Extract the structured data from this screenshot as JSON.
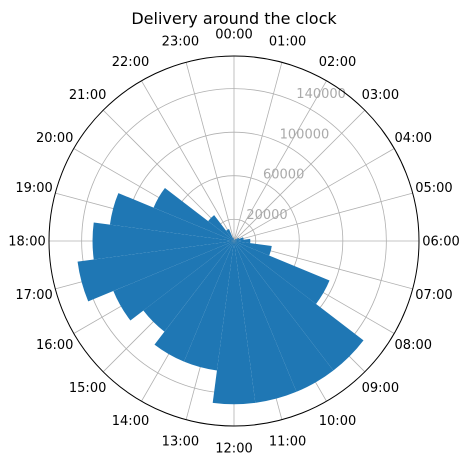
{
  "chart_data": {
    "type": "bar",
    "subtype": "polar",
    "title": "Delivery around the clock",
    "direction": "clockwise",
    "zero_location": "top",
    "categories": [
      "00:00",
      "01:00",
      "02:00",
      "03:00",
      "04:00",
      "05:00",
      "06:00",
      "07:00",
      "08:00",
      "09:00",
      "10:00",
      "11:00",
      "12:00",
      "13:00",
      "14:00",
      "15:00",
      "16:00",
      "17:00",
      "18:00",
      "19:00",
      "20:00",
      "21:00",
      "22:00",
      "23:00"
    ],
    "values": [
      1500,
      1000,
      1200,
      2500,
      5000,
      9000,
      15000,
      35000,
      95000,
      150000,
      150000,
      150000,
      150000,
      120000,
      120000,
      105000,
      120000,
      145000,
      130000,
      115000,
      80000,
      30000,
      12000,
      3000
    ],
    "rlim": [
      0,
      170000
    ],
    "r_ticks": [
      20000,
      60000,
      100000,
      140000
    ],
    "r_tick_labels": [
      "20000",
      "60000",
      "100000",
      "140000"
    ],
    "r_label_angle_deg": 22.5,
    "grid": true,
    "bar_color": "#1f77b4",
    "grid_color": "#b0b0b0",
    "r_tick_label_color": "#aaaaaa"
  }
}
